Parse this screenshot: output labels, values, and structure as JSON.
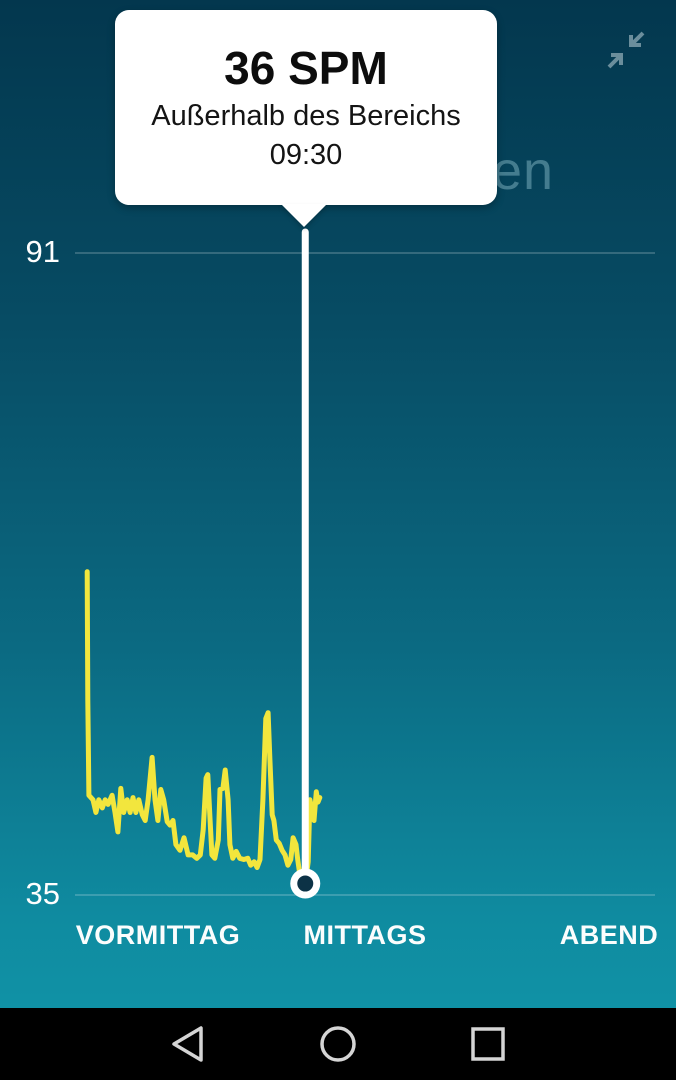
{
  "tooltip": {
    "value": "36 SPM",
    "subtitle": "Außerhalb des Bereichs",
    "time": "09:30"
  },
  "background_title_fragment": "en",
  "colors": {
    "series_yellow": "#f2e63d",
    "selection_line": "#ffffff",
    "marker_ring": "#ffffff",
    "marker_inner": "#0c3246",
    "gridline": "rgba(255,255,255,0.25)",
    "background_top": "#03374e",
    "background_bottom": "#1197aa",
    "collapse_icon": "#6b8e9c",
    "nav_icon": "#d5d5d5"
  },
  "chart_data": {
    "type": "line",
    "title": "",
    "unit": "SPM",
    "ylabel": "",
    "xlabel": "",
    "ylim": [
      35,
      91
    ],
    "y_ticks": [
      91,
      35
    ],
    "x_labels": [
      "VORMITTAG",
      "MITTAGS",
      "ABEND"
    ],
    "grid": "horizontal-only",
    "series": [
      {
        "name": "SPM",
        "x_unit": "fraction of x-axis",
        "points": [
          [
            0.021,
            63.2
          ],
          [
            0.022,
            52.0
          ],
          [
            0.024,
            43.7
          ],
          [
            0.031,
            43.3
          ],
          [
            0.036,
            42.2
          ],
          [
            0.041,
            43.3
          ],
          [
            0.047,
            42.6
          ],
          [
            0.052,
            43.3
          ],
          [
            0.057,
            42.9
          ],
          [
            0.064,
            43.7
          ],
          [
            0.069,
            42.2
          ],
          [
            0.074,
            40.5
          ],
          [
            0.079,
            44.3
          ],
          [
            0.084,
            42.2
          ],
          [
            0.09,
            43.3
          ],
          [
            0.095,
            42.2
          ],
          [
            0.1,
            43.5
          ],
          [
            0.105,
            42.2
          ],
          [
            0.11,
            43.3
          ],
          [
            0.116,
            42.0
          ],
          [
            0.121,
            41.5
          ],
          [
            0.126,
            43.3
          ],
          [
            0.133,
            47.0
          ],
          [
            0.138,
            43.3
          ],
          [
            0.143,
            41.5
          ],
          [
            0.148,
            44.2
          ],
          [
            0.153,
            43.3
          ],
          [
            0.159,
            41.4
          ],
          [
            0.164,
            41.1
          ],
          [
            0.169,
            41.5
          ],
          [
            0.174,
            39.4
          ],
          [
            0.181,
            38.9
          ],
          [
            0.188,
            40.0
          ],
          [
            0.195,
            38.5
          ],
          [
            0.203,
            38.5
          ],
          [
            0.21,
            38.2
          ],
          [
            0.216,
            38.5
          ],
          [
            0.221,
            40.7
          ],
          [
            0.226,
            45.2
          ],
          [
            0.229,
            45.5
          ],
          [
            0.233,
            41.5
          ],
          [
            0.236,
            38.5
          ],
          [
            0.241,
            38.2
          ],
          [
            0.247,
            39.8
          ],
          [
            0.25,
            44.2
          ],
          [
            0.255,
            44.3
          ],
          [
            0.259,
            45.9
          ],
          [
            0.264,
            43.3
          ],
          [
            0.267,
            39.4
          ],
          [
            0.272,
            38.2
          ],
          [
            0.278,
            38.8
          ],
          [
            0.284,
            38.2
          ],
          [
            0.291,
            38.1
          ],
          [
            0.298,
            38.2
          ],
          [
            0.303,
            37.6
          ],
          [
            0.309,
            37.9
          ],
          [
            0.314,
            37.4
          ],
          [
            0.319,
            38.1
          ],
          [
            0.324,
            43.3
          ],
          [
            0.329,
            50.4
          ],
          [
            0.333,
            50.9
          ],
          [
            0.336,
            46.8
          ],
          [
            0.34,
            42.0
          ],
          [
            0.343,
            41.5
          ],
          [
            0.347,
            39.8
          ],
          [
            0.352,
            39.5
          ],
          [
            0.357,
            38.9
          ],
          [
            0.362,
            38.5
          ],
          [
            0.367,
            37.6
          ],
          [
            0.372,
            38.1
          ],
          [
            0.376,
            40.0
          ],
          [
            0.381,
            39.4
          ],
          [
            0.384,
            38.1
          ],
          [
            0.388,
            36.7
          ],
          [
            0.393,
            36.1
          ],
          [
            0.397,
            36.0
          ],
          [
            0.402,
            37.9
          ],
          [
            0.405,
            43.3
          ],
          [
            0.409,
            42.4
          ],
          [
            0.412,
            41.5
          ],
          [
            0.416,
            44.0
          ],
          [
            0.419,
            43.1
          ],
          [
            0.422,
            43.5
          ]
        ]
      }
    ],
    "selection": {
      "x_frac": 0.397,
      "value": 36,
      "time": "09:30",
      "status": "Außerhalb des Bereichs"
    },
    "legend": "none"
  },
  "nav_bar": {
    "back": "back",
    "home": "home",
    "recents": "recents"
  }
}
